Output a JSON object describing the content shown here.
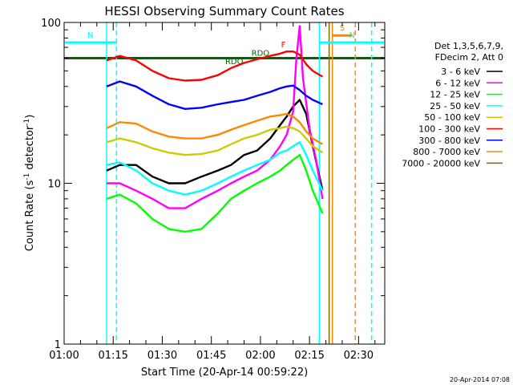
{
  "chart_data": {
    "type": "line",
    "title": "HESSI Observing Summary Count Rates",
    "xlabel": "Start Time (20-Apr-14 00:59:22)",
    "ylabel": "Count Rate (s⁻¹ detector⁻¹)",
    "ylabel_main": "Count Rate (s",
    "ylabel_sup1": "-1",
    "ylabel_mid": " detector",
    "ylabel_sup2": "-1",
    "ylabel_end": ")",
    "y_scale": "log",
    "ylim": [
      1,
      100
    ],
    "xlim": [
      "01:00",
      "02:38"
    ],
    "x_ticks": [
      "01:00",
      "01:15",
      "01:30",
      "01:45",
      "02:00",
      "02:15",
      "02:30"
    ],
    "y_ticks": [
      "1",
      "10",
      "100"
    ],
    "timestamp": "20-Apr-2014 07:08",
    "legend": {
      "title_lines": [
        "Det 1,3,5,6,7,9,",
        "FDecim 2, Att 0"
      ],
      "entries": [
        {
          "label": "3 - 6 keV",
          "color": "#000000"
        },
        {
          "label": "6 - 12 keV",
          "color": "#ff00ff"
        },
        {
          "label": "12 - 25 keV",
          "color": "#00ff00"
        },
        {
          "label": "25 - 50 keV",
          "color": "#00ffff"
        },
        {
          "label": "50 - 100 keV",
          "color": "#cccc00"
        },
        {
          "label": "100 - 300 keV",
          "color": "#ff0000"
        },
        {
          "label": "300 - 800 keV",
          "color": "#0000ff"
        },
        {
          "label": "800 - 7000 keV",
          "color": "#ff8800"
        },
        {
          "label": "7000 - 20000 keV",
          "color": "#886600"
        }
      ]
    },
    "series": [
      {
        "name": "3 - 6 keV",
        "color": "#000000",
        "points": [
          [
            "01:13",
            12
          ],
          [
            "01:17",
            13
          ],
          [
            "01:22",
            13
          ],
          [
            "01:27",
            11
          ],
          [
            "01:32",
            10
          ],
          [
            "01:37",
            10
          ],
          [
            "01:42",
            11
          ],
          [
            "01:47",
            12
          ],
          [
            "01:51",
            13
          ],
          [
            "01:55",
            15
          ],
          [
            "01:59",
            16
          ],
          [
            "02:03",
            19
          ],
          [
            "02:06",
            23
          ],
          [
            "02:08",
            26
          ],
          [
            "02:10",
            30
          ],
          [
            "02:12",
            33
          ],
          [
            "02:14",
            27
          ],
          [
            "02:16",
            17
          ],
          [
            "02:19",
            9
          ]
        ]
      },
      {
        "name": "6 - 12 keV",
        "color": "#ff00ff",
        "points": [
          [
            "01:13",
            10
          ],
          [
            "01:17",
            10
          ],
          [
            "01:22",
            9
          ],
          [
            "01:27",
            8
          ],
          [
            "01:32",
            7
          ],
          [
            "01:37",
            7
          ],
          [
            "01:42",
            8
          ],
          [
            "01:47",
            9
          ],
          [
            "01:51",
            10
          ],
          [
            "01:55",
            11
          ],
          [
            "01:59",
            12
          ],
          [
            "02:03",
            14
          ],
          [
            "02:06",
            17
          ],
          [
            "02:08",
            20
          ],
          [
            "02:10",
            28
          ],
          [
            "02:11",
            60
          ],
          [
            "02:12",
            95
          ],
          [
            "02:13",
            45
          ],
          [
            "02:15",
            22
          ],
          [
            "02:17",
            14
          ],
          [
            "02:19",
            8
          ]
        ]
      },
      {
        "name": "12 - 25 keV",
        "color": "#00ff00",
        "points": [
          [
            "01:13",
            8
          ],
          [
            "01:17",
            8.5
          ],
          [
            "01:22",
            7.5
          ],
          [
            "01:27",
            6
          ],
          [
            "01:32",
            5.2
          ],
          [
            "01:37",
            5
          ],
          [
            "01:42",
            5.2
          ],
          [
            "01:47",
            6.5
          ],
          [
            "01:51",
            8
          ],
          [
            "01:55",
            9
          ],
          [
            "01:59",
            10
          ],
          [
            "02:03",
            11
          ],
          [
            "02:06",
            12
          ],
          [
            "02:08",
            13
          ],
          [
            "02:10",
            14
          ],
          [
            "02:12",
            15
          ],
          [
            "02:14",
            12
          ],
          [
            "02:16",
            9
          ],
          [
            "02:19",
            6.5
          ]
        ]
      },
      {
        "name": "25 - 50 keV",
        "color": "#00ffff",
        "points": [
          [
            "01:13",
            13
          ],
          [
            "01:17",
            13.5
          ],
          [
            "01:22",
            12
          ],
          [
            "01:27",
            10
          ],
          [
            "01:32",
            9
          ],
          [
            "01:37",
            8.5
          ],
          [
            "01:42",
            9
          ],
          [
            "01:47",
            10
          ],
          [
            "01:51",
            11
          ],
          [
            "01:55",
            12
          ],
          [
            "01:59",
            13
          ],
          [
            "02:03",
            14
          ],
          [
            "02:06",
            15.5
          ],
          [
            "02:08",
            16
          ],
          [
            "02:10",
            17
          ],
          [
            "02:12",
            18
          ],
          [
            "02:14",
            15
          ],
          [
            "02:16",
            12
          ],
          [
            "02:19",
            9
          ]
        ]
      },
      {
        "name": "50 - 100 keV",
        "color": "#cccc00",
        "points": [
          [
            "01:13",
            18
          ],
          [
            "01:17",
            19
          ],
          [
            "01:22",
            18
          ],
          [
            "01:27",
            16.5
          ],
          [
            "01:32",
            15.5
          ],
          [
            "01:37",
            15
          ],
          [
            "01:42",
            15.2
          ],
          [
            "01:47",
            16
          ],
          [
            "01:51",
            17.5
          ],
          [
            "01:55",
            19
          ],
          [
            "01:59",
            20
          ],
          [
            "02:03",
            21.5
          ],
          [
            "02:06",
            22
          ],
          [
            "02:08",
            22.5
          ],
          [
            "02:10",
            22
          ],
          [
            "02:12",
            21
          ],
          [
            "02:14",
            19
          ],
          [
            "02:16",
            17
          ],
          [
            "02:19",
            15.5
          ]
        ]
      },
      {
        "name": "100 - 300 keV",
        "color": "#ff0000",
        "points": [
          [
            "01:13",
            58
          ],
          [
            "01:17",
            62
          ],
          [
            "01:22",
            58
          ],
          [
            "01:27",
            50
          ],
          [
            "01:32",
            45
          ],
          [
            "01:37",
            43.5
          ],
          [
            "01:42",
            44
          ],
          [
            "01:47",
            47
          ],
          [
            "01:51",
            52
          ],
          [
            "01:55",
            56
          ],
          [
            "01:59",
            59
          ],
          [
            "02:03",
            62
          ],
          [
            "02:06",
            64
          ],
          [
            "02:08",
            66
          ],
          [
            "02:10",
            66
          ],
          [
            "02:12",
            63
          ],
          [
            "02:14",
            55
          ],
          [
            "02:16",
            50
          ],
          [
            "02:19",
            46
          ]
        ]
      },
      {
        "name": "300 - 800 keV",
        "color": "#0000ff",
        "points": [
          [
            "01:13",
            40
          ],
          [
            "01:17",
            43
          ],
          [
            "01:22",
            40
          ],
          [
            "01:27",
            35
          ],
          [
            "01:32",
            31
          ],
          [
            "01:37",
            29
          ],
          [
            "01:42",
            29.5
          ],
          [
            "01:47",
            31
          ],
          [
            "01:51",
            32
          ],
          [
            "01:55",
            33
          ],
          [
            "01:59",
            35
          ],
          [
            "02:03",
            37
          ],
          [
            "02:06",
            39
          ],
          [
            "02:08",
            40
          ],
          [
            "02:10",
            40.5
          ],
          [
            "02:12",
            38
          ],
          [
            "02:14",
            35
          ],
          [
            "02:16",
            33
          ],
          [
            "02:19",
            31
          ]
        ]
      },
      {
        "name": "800 - 7000 keV",
        "color": "#ff8800",
        "points": [
          [
            "01:13",
            22
          ],
          [
            "01:17",
            24
          ],
          [
            "01:22",
            23.5
          ],
          [
            "01:27",
            21
          ],
          [
            "01:32",
            19.5
          ],
          [
            "01:37",
            19
          ],
          [
            "01:42",
            19
          ],
          [
            "01:47",
            20
          ],
          [
            "01:51",
            21.5
          ],
          [
            "01:55",
            23
          ],
          [
            "01:59",
            24.5
          ],
          [
            "02:03",
            26
          ],
          [
            "02:06",
            26.5
          ],
          [
            "02:08",
            27
          ],
          [
            "02:10",
            26
          ],
          [
            "02:12",
            24
          ],
          [
            "02:14",
            21
          ],
          [
            "02:16",
            19
          ],
          [
            "02:19",
            17.5
          ]
        ]
      }
    ],
    "annotations": [
      {
        "text": "N",
        "kind": "night",
        "color": "#00ffff",
        "x_start": "00:59",
        "x_end": "01:16",
        "y": 75
      },
      {
        "text": "N",
        "kind": "night",
        "color": "#00ffff",
        "x_start": "02:18",
        "x_end": "02:38",
        "y": 75
      },
      {
        "text": "S",
        "kind": "saa",
        "color": "#ff8800",
        "x_start": "02:22",
        "x_end": "02:28",
        "y": 83
      },
      {
        "text": "RDO",
        "kind": "rdo",
        "color": "#006600",
        "x": "01:52",
        "y": 55
      },
      {
        "text": "RDO",
        "kind": "rdo",
        "color": "#006600",
        "x": "02:00",
        "y": 62
      },
      {
        "text": "F",
        "kind": "flare",
        "color": "#ff0000",
        "x": "02:07",
        "y": 70
      }
    ],
    "reference_lines": [
      {
        "kind": "attenuator",
        "color": "#006600",
        "y": 60
      },
      {
        "kind": "vline-solid",
        "color": "#00ffff",
        "x": "01:13"
      },
      {
        "kind": "vline-dash",
        "color": "#00ffff",
        "x": "01:16"
      },
      {
        "kind": "vline-solid",
        "color": "#00ffff",
        "x": "02:18"
      },
      {
        "kind": "vline-dash",
        "color": "#00ffff",
        "x": "02:34"
      },
      {
        "kind": "vline-solid",
        "color": "#ff8800",
        "x": "02:22"
      },
      {
        "kind": "vline-dash",
        "color": "#ff8800",
        "x": "02:29"
      },
      {
        "kind": "vline-solid",
        "color": "#886600",
        "x": "02:21"
      }
    ]
  }
}
